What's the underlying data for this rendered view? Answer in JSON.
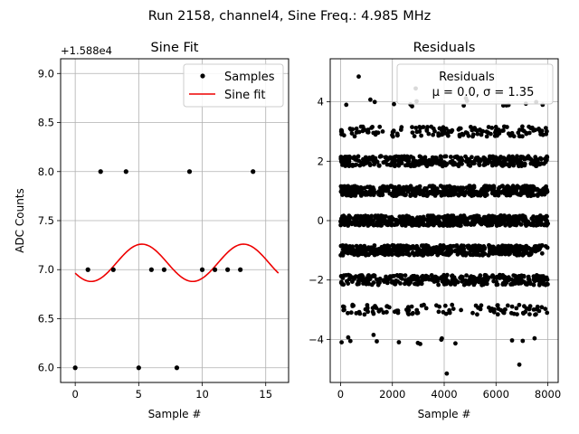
{
  "figure": {
    "suptitle": "Run 2158, channel4, Sine Freq.: 4.985 MHz"
  },
  "chart_data": [
    {
      "type": "line",
      "title": "Sine Fit",
      "xlabel": "Sample #",
      "ylabel": "ADC Counts",
      "offset_label": "+1.588e4",
      "xlim": [
        -1.15,
        16.8
      ],
      "ylim": [
        5.85,
        9.15
      ],
      "xticks": [
        0,
        5,
        10,
        15
      ],
      "yticks": [
        6.0,
        6.5,
        7.0,
        7.5,
        8.0,
        8.5,
        9.0
      ],
      "xtick_labels": [
        "0",
        "5",
        "10",
        "15"
      ],
      "ytick_labels": [
        "6.0",
        "6.5",
        "7.0",
        "7.5",
        "8.0",
        "8.5",
        "9.0"
      ],
      "grid": true,
      "legend": {
        "position": "top-right",
        "entries": [
          "Samples",
          "Sine fit"
        ]
      },
      "samples": {
        "name": "Samples",
        "color": "#000000",
        "x": [
          0,
          1,
          2,
          3,
          4,
          5,
          6,
          7,
          8,
          9,
          10,
          11,
          12,
          13,
          14
        ],
        "y": [
          6,
          7,
          8,
          7,
          8,
          6,
          7,
          7,
          6,
          8,
          7,
          7,
          7,
          7,
          8
        ]
      },
      "fit": {
        "name": "Sine fit",
        "color": "#ee0000",
        "x_range": [
          0,
          16
        ],
        "amplitude": 0.19,
        "offset": 7.07,
        "period": 8.0,
        "peak_x": 5.25
      }
    },
    {
      "type": "scatter",
      "title": "Residuals",
      "xlabel": "Sample #",
      "xlim": [
        -400,
        8400
      ],
      "ylim": [
        -5.45,
        5.45
      ],
      "xticks": [
        0,
        2000,
        4000,
        6000,
        8000
      ],
      "yticks": [
        -4,
        -2,
        0,
        2,
        4
      ],
      "xtick_labels": [
        "0",
        "2000",
        "4000",
        "6000",
        "8000"
      ],
      "ytick_labels": [
        "−4",
        "−2",
        "0",
        "2",
        "4"
      ],
      "grid": true,
      "legend": {
        "position": "top-right",
        "entries": [
          "Residuals",
          "μ = 0.0, σ = 1.35"
        ]
      },
      "series": [
        {
          "name": "Residuals",
          "color": "#000000",
          "levels": [
            {
              "y": 0,
              "count": 600
            },
            {
              "y": 1,
              "count": 500
            },
            {
              "y": -1,
              "count": 500
            },
            {
              "y": 2,
              "count": 380
            },
            {
              "y": -2,
              "count": 340
            },
            {
              "y": 3,
              "count": 150
            },
            {
              "y": -3,
              "count": 110
            },
            {
              "y": 4,
              "count": 14
            },
            {
              "y": -4,
              "count": 14
            }
          ],
          "outliers": [
            {
              "x": 700,
              "y": 4.85
            },
            {
              "x": 2900,
              "y": 4.45
            },
            {
              "x": 4100,
              "y": -5.15
            },
            {
              "x": 6900,
              "y": -4.85
            },
            {
              "x": 220,
              "y": 3.9
            },
            {
              "x": 7800,
              "y": 3.9
            }
          ]
        }
      ],
      "stats": {
        "mu": 0.0,
        "sigma": 1.35
      }
    }
  ]
}
